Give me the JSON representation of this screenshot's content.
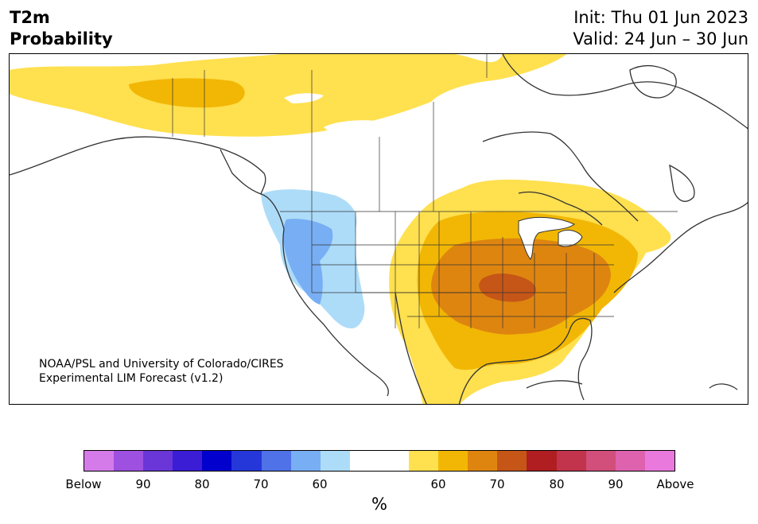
{
  "header": {
    "variable": "T2m",
    "quantity": "Probability",
    "init": "Init: Thu 01 Jun 2023",
    "valid": "Valid: 24 Jun – 30 Jun"
  },
  "credit": {
    "line1": "NOAA/PSL and University of Colorado/CIRES",
    "line2": "Experimental LIM Forecast (v1.2)"
  },
  "colorbar": {
    "unit": "%",
    "colors": [
      "#d47be9",
      "#9e50e0",
      "#6a36d8",
      "#3a1dd4",
      "#0200cc",
      "#2637d9",
      "#4f72e8",
      "#78aef3",
      "#addcf9",
      "#ffffff",
      "#ffffff",
      "#ffe04f",
      "#f2b705",
      "#de8510",
      "#c55617",
      "#b01e21",
      "#c2344c",
      "#d24f7b",
      "#de62ae",
      "#e979dd"
    ],
    "labels": [
      "Below",
      "90",
      "80",
      "70",
      "60",
      "60",
      "70",
      "80",
      "90",
      "Above"
    ]
  },
  "map": {
    "region": "North America",
    "legend_colors": {
      "below_50_60": "#addcf9",
      "below_60_70": "#78aef3",
      "above_50_60": "#ffe04f",
      "above_60_70": "#f2b705",
      "above_70_80": "#de8510",
      "above_80_90": "#c55617"
    }
  }
}
